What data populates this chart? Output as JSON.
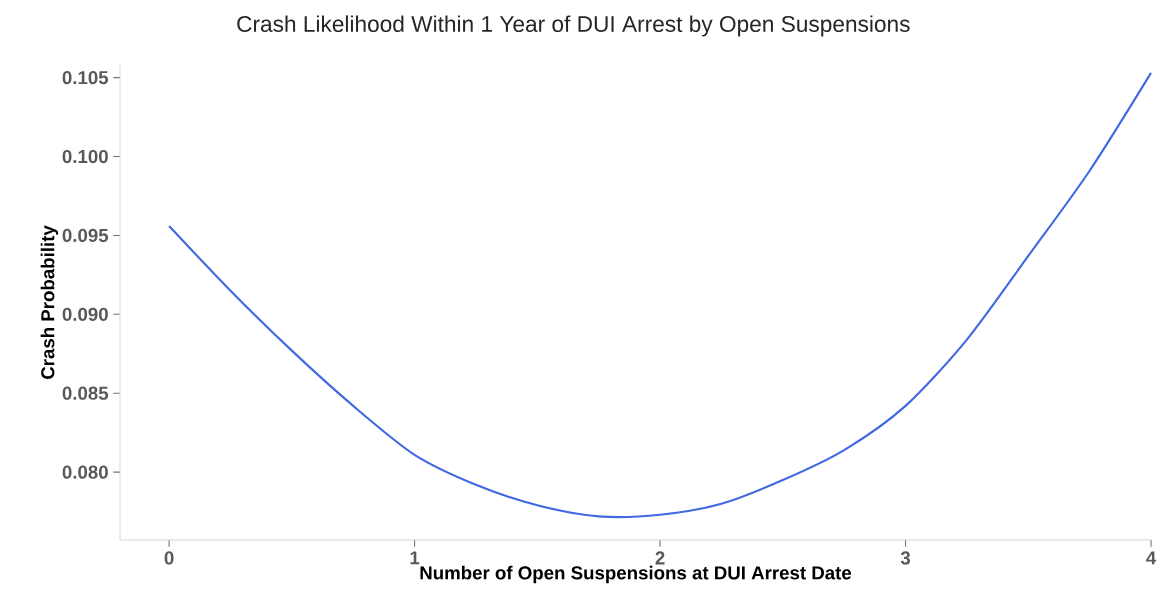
{
  "chart_data": {
    "type": "line",
    "title": "Crash Likelihood Within 1 Year of DUI Arrest by Open Suspensions",
    "xlabel": "Number of Open Suspensions at DUI Arrest Date",
    "ylabel": "Crash Probability",
    "series": [
      {
        "color": "#4169e1",
        "x": [
          0,
          0.25,
          0.5,
          0.75,
          1,
          1.25,
          1.5,
          1.75,
          2,
          2.25,
          2.5,
          2.75,
          3,
          3.25,
          3.5,
          3.75,
          4
        ],
        "values": [
          0.0956,
          0.0915,
          0.0877,
          0.0842,
          0.0811,
          0.0792,
          0.0779,
          0.0772,
          0.0773,
          0.078,
          0.0795,
          0.0814,
          0.0842,
          0.0884,
          0.0937,
          0.0991,
          0.1053
        ]
      }
    ],
    "xlim": [
      -0.2,
      4.0
    ],
    "ylim": [
      0.0757,
      0.1058
    ],
    "xticks": [
      0,
      1,
      2,
      3,
      4
    ],
    "yticks": [
      {
        "value": 0.08,
        "label": "0.080"
      },
      0.085,
      {
        "value": 0.09,
        "label": "0.090"
      },
      0.095,
      {
        "value": 0.1,
        "label": "0.100"
      },
      0.105
    ],
    "grid": false,
    "marker": "none",
    "line_style": "solid"
  }
}
